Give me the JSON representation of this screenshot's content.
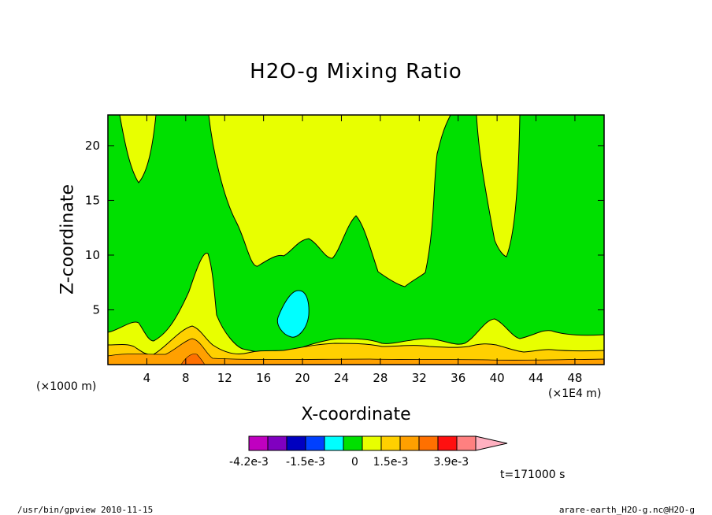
{
  "chart_data": {
    "type": "contour",
    "title": "H2O-g Mixing Ratio",
    "xlabel": "X-coordinate",
    "ylabel": "Z-coordinate",
    "x_unit": "(×1E4 m)",
    "y_unit": "(×1000 m)",
    "xlim": [
      0,
      51
    ],
    "ylim": [
      0,
      22.8
    ],
    "x_ticks": [
      4,
      8,
      12,
      16,
      20,
      24,
      28,
      32,
      36,
      40,
      44,
      48
    ],
    "y_ticks": [
      5,
      10,
      15,
      20
    ],
    "colorbar": {
      "colors": [
        "#c000c0",
        "#8000c0",
        "#0000c0",
        "#0040ff",
        "#00ffff",
        "#00e000",
        "#e8ff00",
        "#ffd000",
        "#ffa000",
        "#ff7000",
        "#ff1010",
        "#ff8080",
        "#ffb0c0"
      ],
      "labels": [
        "-4.2e-3",
        "-1.5e-3",
        "0",
        "1.5e-3",
        "3.9e-3"
      ]
    },
    "time_label": "t=171000 s",
    "regions": [
      {
        "level": "0 to 1.5e-3",
        "color": "#00e000",
        "description": "background"
      },
      {
        "level": "1.5e-3 to 3e-3",
        "color": "#e8ff00",
        "description": "upper and lower yellow bands"
      },
      {
        "level": "-1.5e-3 to 0",
        "color": "#00ffff",
        "description": "cyan pocket near x=19, z=4.5"
      },
      {
        "level": "3e-3 to 3.6e-3",
        "color": "#ffd000",
        "description": "near-surface orange band"
      }
    ]
  },
  "footer": {
    "left": "/usr/bin/gpview  2010-11-15",
    "right": "arare-earth_H2O-g.nc@H2O-g"
  }
}
